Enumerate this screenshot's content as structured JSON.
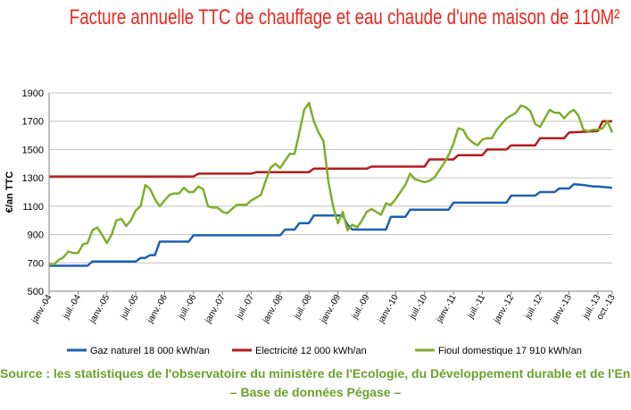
{
  "header": {
    "title": "Facture annuelle TTC de chauffage et eau chaude d'une maison de 110M²"
  },
  "footer": {
    "source_line1": "Source : les statistiques de l'observatoire du ministère de l'Ecologie, du Développement durable et de l'Energie",
    "source_line2": "– Base de données Pégase –"
  },
  "chart_data": {
    "type": "line",
    "title": "Facture annuelle TTC de chauffage et eau chaude d'une maison de 110M²",
    "ylabel": "€/an TTC",
    "xlabel": "",
    "ylim": [
      500,
      1900
    ],
    "yticks": [
      500,
      700,
      900,
      1100,
      1300,
      1500,
      1700,
      1900
    ],
    "grid": true,
    "legend_position": "bottom",
    "x_tick_labels": [
      "janv.-04",
      "juil.-04",
      "janv.-05",
      "juil.-05",
      "janv.-06",
      "juil.-06",
      "janv.-07",
      "juil.-07",
      "janv.-08",
      "juil.-08",
      "janv.-09",
      "juil.-09",
      "janv.-10",
      "juil.-10",
      "janv.-11",
      "juil.-11",
      "janv.-12",
      "juil.-12",
      "janv.-13",
      "juil.-13",
      "oct.-13"
    ],
    "series": [
      {
        "name": "Gaz naturel 18 000 kWh/an",
        "color": "#1f5fb4",
        "points": [
          [
            "2004-01",
            680
          ],
          [
            "2004-09",
            680
          ],
          [
            "2004-10",
            710
          ],
          [
            "2005-07",
            710
          ],
          [
            "2005-08",
            735
          ],
          [
            "2005-09",
            735
          ],
          [
            "2005-10",
            755
          ],
          [
            "2005-11",
            755
          ],
          [
            "2005-12",
            850
          ],
          [
            "2006-06",
            850
          ],
          [
            "2006-07",
            895
          ],
          [
            "2008-01",
            895
          ],
          [
            "2008-02",
            935
          ],
          [
            "2008-04",
            935
          ],
          [
            "2008-05",
            980
          ],
          [
            "2008-07",
            980
          ],
          [
            "2008-08",
            1035
          ],
          [
            "2009-02",
            1035
          ],
          [
            "2009-03",
            970
          ],
          [
            "2009-04",
            935
          ],
          [
            "2009-11",
            935
          ],
          [
            "2009-12",
            1025
          ],
          [
            "2010-03",
            1025
          ],
          [
            "2010-04",
            1075
          ],
          [
            "2010-12",
            1075
          ],
          [
            "2011-01",
            1125
          ],
          [
            "2011-12",
            1125
          ],
          [
            "2012-01",
            1175
          ],
          [
            "2012-06",
            1175
          ],
          [
            "2012-07",
            1200
          ],
          [
            "2012-10",
            1200
          ],
          [
            "2012-11",
            1225
          ],
          [
            "2013-01",
            1225
          ],
          [
            "2013-02",
            1255
          ],
          [
            "2013-04",
            1250
          ],
          [
            "2013-06",
            1240
          ],
          [
            "2013-07",
            1240
          ],
          [
            "2013-10",
            1230
          ]
        ]
      },
      {
        "name": "Electricité 12 000 kWh/an",
        "color": "#b51c1c",
        "points": [
          [
            "2004-01",
            1310
          ],
          [
            "2006-07",
            1310
          ],
          [
            "2006-08",
            1330
          ],
          [
            "2007-07",
            1330
          ],
          [
            "2007-08",
            1340
          ],
          [
            "2008-07",
            1340
          ],
          [
            "2008-08",
            1365
          ],
          [
            "2009-07",
            1365
          ],
          [
            "2009-08",
            1380
          ],
          [
            "2010-07",
            1380
          ],
          [
            "2010-08",
            1430
          ],
          [
            "2011-01",
            1430
          ],
          [
            "2011-02",
            1460
          ],
          [
            "2011-07",
            1460
          ],
          [
            "2011-08",
            1500
          ],
          [
            "2011-12",
            1500
          ],
          [
            "2012-01",
            1530
          ],
          [
            "2012-06",
            1530
          ],
          [
            "2012-07",
            1580
          ],
          [
            "2012-12",
            1580
          ],
          [
            "2013-01",
            1620
          ],
          [
            "2013-07",
            1630
          ],
          [
            "2013-08",
            1700
          ],
          [
            "2013-10",
            1700
          ]
        ]
      },
      {
        "name": "Fioul domestique 17 910 kWh/an",
        "color": "#7fae2c",
        "points": [
          [
            "2004-01",
            690
          ],
          [
            "2004-02",
            690
          ],
          [
            "2004-03",
            720
          ],
          [
            "2004-04",
            740
          ],
          [
            "2004-05",
            780
          ],
          [
            "2004-06",
            770
          ],
          [
            "2004-07",
            770
          ],
          [
            "2004-08",
            830
          ],
          [
            "2004-09",
            840
          ],
          [
            "2004-10",
            930
          ],
          [
            "2004-11",
            950
          ],
          [
            "2004-12",
            900
          ],
          [
            "2005-01",
            840
          ],
          [
            "2005-02",
            900
          ],
          [
            "2005-03",
            1000
          ],
          [
            "2005-04",
            1010
          ],
          [
            "2005-05",
            960
          ],
          [
            "2005-06",
            1000
          ],
          [
            "2005-07",
            1070
          ],
          [
            "2005-08",
            1100
          ],
          [
            "2005-09",
            1250
          ],
          [
            "2005-10",
            1220
          ],
          [
            "2005-11",
            1150
          ],
          [
            "2005-12",
            1100
          ],
          [
            "2006-01",
            1140
          ],
          [
            "2006-02",
            1180
          ],
          [
            "2006-03",
            1190
          ],
          [
            "2006-04",
            1190
          ],
          [
            "2006-05",
            1230
          ],
          [
            "2006-06",
            1200
          ],
          [
            "2006-07",
            1200
          ],
          [
            "2006-08",
            1240
          ],
          [
            "2006-09",
            1220
          ],
          [
            "2006-10",
            1100
          ],
          [
            "2006-11",
            1090
          ],
          [
            "2006-12",
            1090
          ],
          [
            "2007-01",
            1060
          ],
          [
            "2007-02",
            1050
          ],
          [
            "2007-03",
            1080
          ],
          [
            "2007-04",
            1110
          ],
          [
            "2007-05",
            1110
          ],
          [
            "2007-06",
            1110
          ],
          [
            "2007-07",
            1140
          ],
          [
            "2007-08",
            1160
          ],
          [
            "2007-09",
            1180
          ],
          [
            "2007-10",
            1280
          ],
          [
            "2007-11",
            1370
          ],
          [
            "2007-12",
            1400
          ],
          [
            "2008-01",
            1370
          ],
          [
            "2008-02",
            1420
          ],
          [
            "2008-03",
            1470
          ],
          [
            "2008-04",
            1470
          ],
          [
            "2008-05",
            1620
          ],
          [
            "2008-06",
            1780
          ],
          [
            "2008-07",
            1830
          ],
          [
            "2008-08",
            1700
          ],
          [
            "2008-09",
            1620
          ],
          [
            "2008-10",
            1560
          ],
          [
            "2008-11",
            1280
          ],
          [
            "2008-12",
            1100
          ],
          [
            "2009-01",
            980
          ],
          [
            "2009-02",
            1060
          ],
          [
            "2009-03",
            930
          ],
          [
            "2009-04",
            970
          ],
          [
            "2009-05",
            950
          ],
          [
            "2009-06",
            1000
          ],
          [
            "2009-07",
            1060
          ],
          [
            "2009-08",
            1080
          ],
          [
            "2009-09",
            1060
          ],
          [
            "2009-10",
            1040
          ],
          [
            "2009-11",
            1120
          ],
          [
            "2009-12",
            1110
          ],
          [
            "2010-01",
            1150
          ],
          [
            "2010-02",
            1200
          ],
          [
            "2010-03",
            1250
          ],
          [
            "2010-04",
            1330
          ],
          [
            "2010-05",
            1290
          ],
          [
            "2010-06",
            1280
          ],
          [
            "2010-07",
            1270
          ],
          [
            "2010-08",
            1280
          ],
          [
            "2010-09",
            1300
          ],
          [
            "2010-10",
            1350
          ],
          [
            "2010-11",
            1400
          ],
          [
            "2010-12",
            1460
          ],
          [
            "2011-01",
            1540
          ],
          [
            "2011-02",
            1650
          ],
          [
            "2011-03",
            1640
          ],
          [
            "2011-04",
            1580
          ],
          [
            "2011-05",
            1550
          ],
          [
            "2011-06",
            1530
          ],
          [
            "2011-07",
            1570
          ],
          [
            "2011-08",
            1580
          ],
          [
            "2011-09",
            1580
          ],
          [
            "2011-10",
            1640
          ],
          [
            "2011-11",
            1680
          ],
          [
            "2011-12",
            1720
          ],
          [
            "2012-01",
            1740
          ],
          [
            "2012-02",
            1760
          ],
          [
            "2012-03",
            1810
          ],
          [
            "2012-04",
            1800
          ],
          [
            "2012-05",
            1770
          ],
          [
            "2012-06",
            1680
          ],
          [
            "2012-07",
            1660
          ],
          [
            "2012-08",
            1720
          ],
          [
            "2012-09",
            1780
          ],
          [
            "2012-10",
            1760
          ],
          [
            "2012-11",
            1760
          ],
          [
            "2012-12",
            1720
          ],
          [
            "2013-01",
            1760
          ],
          [
            "2013-02",
            1780
          ],
          [
            "2013-03",
            1740
          ],
          [
            "2013-04",
            1640
          ],
          [
            "2013-05",
            1630
          ],
          [
            "2013-06",
            1640
          ],
          [
            "2013-07",
            1640
          ],
          [
            "2013-08",
            1650
          ],
          [
            "2013-09",
            1700
          ],
          [
            "2013-10",
            1620
          ]
        ]
      }
    ]
  }
}
